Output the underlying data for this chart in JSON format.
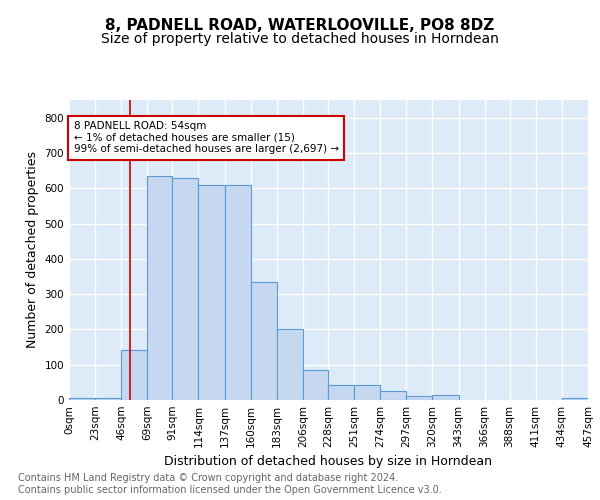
{
  "title1": "8, PADNELL ROAD, WATERLOOVILLE, PO8 8DZ",
  "title2": "Size of property relative to detached houses in Horndean",
  "xlabel": "Distribution of detached houses by size in Horndean",
  "ylabel": "Number of detached properties",
  "bar_edges": [
    0,
    23,
    46,
    69,
    91,
    114,
    137,
    160,
    183,
    206,
    228,
    251,
    274,
    297,
    320,
    343,
    366,
    388,
    411,
    434,
    457
  ],
  "bar_heights": [
    5,
    5,
    143,
    635,
    630,
    608,
    608,
    333,
    200,
    85,
    43,
    43,
    25,
    12,
    13,
    0,
    0,
    0,
    0,
    5
  ],
  "bar_color": "#c5d8f0",
  "bar_edge_color": "#5b9bd5",
  "vline_x": 54,
  "vline_color": "#cc0000",
  "annotation_text": "8 PADNELL ROAD: 54sqm\n← 1% of detached houses are smaller (15)\n99% of semi-detached houses are larger (2,697) →",
  "annotation_box_color": "#ffffff",
  "annotation_box_edgecolor": "#cc0000",
  "ylim": [
    0,
    850
  ],
  "yticks": [
    0,
    100,
    200,
    300,
    400,
    500,
    600,
    700,
    800
  ],
  "xtick_labels": [
    "0sqm",
    "23sqm",
    "46sqm",
    "69sqm",
    "91sqm",
    "114sqm",
    "137sqm",
    "160sqm",
    "183sqm",
    "206sqm",
    "228sqm",
    "251sqm",
    "274sqm",
    "297sqm",
    "320sqm",
    "343sqm",
    "366sqm",
    "388sqm",
    "411sqm",
    "434sqm",
    "457sqm"
  ],
  "footer_text": "Contains HM Land Registry data © Crown copyright and database right 2024.\nContains public sector information licensed under the Open Government Licence v3.0.",
  "bg_color": "#ddeaf8",
  "grid_color": "#ffffff",
  "title1_fontsize": 11,
  "title2_fontsize": 10,
  "xlabel_fontsize": 9,
  "ylabel_fontsize": 9,
  "tick_fontsize": 7.5,
  "footer_fontsize": 7
}
